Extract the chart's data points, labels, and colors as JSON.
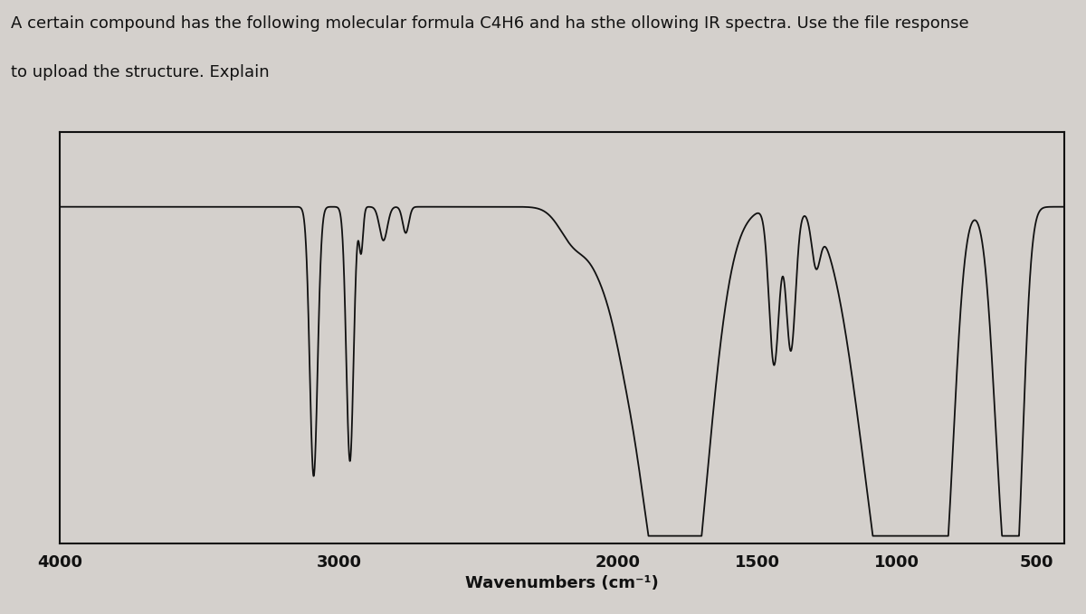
{
  "title_line1": "A certain compound has the following molecular formula C4H6 and ha sthe ollowing IR spectra. Use the file response",
  "title_line2": "to upload the structure. Explain",
  "xlabel": "Wavenumbers (cm⁻¹)",
  "x_ticks": [
    4000,
    3000,
    2000,
    1500,
    1000,
    500
  ],
  "background_color": "#d4d0cc",
  "plot_bg_color": "#d4d0cc",
  "line_color": "#111111",
  "text_color": "#111111",
  "title_fontsize": 13.0,
  "label_fontsize": 13.0,
  "tick_fontsize": 13.0
}
